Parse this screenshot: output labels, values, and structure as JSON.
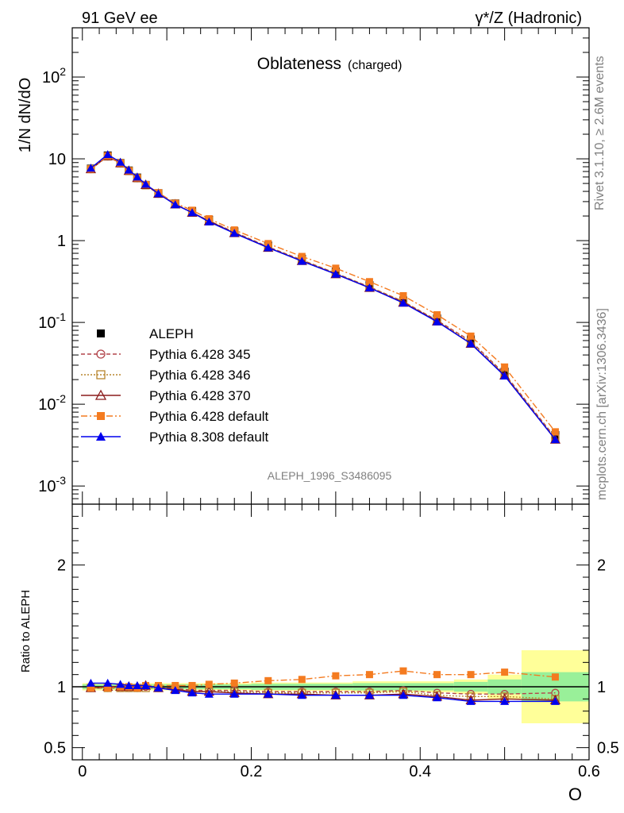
{
  "header": {
    "left": "91 GeV ee",
    "right": "γ*/Z (Hadronic)"
  },
  "side": {
    "rivet": "Rivet 3.1.10, ≥ 2.6M events",
    "mcplots": "mcplots.cern.ch [arXiv:1306.3436]"
  },
  "chart_data": [
    {
      "panel": "main",
      "type": "line",
      "title": "Oblateness",
      "subtitle": "(charged)",
      "ylabel": "1/N dN/dO",
      "yscale": "log",
      "ylim": [
        0.0006,
        400
      ],
      "xlim": [
        -0.012,
        0.6
      ],
      "y_tick_labels": [
        "10^-3",
        "10^-2",
        "10^-1",
        "1",
        "10",
        "10^2"
      ],
      "analysis_label": "ALEPH_1996_S3486095",
      "legend_position": "lower-left",
      "x": [
        0.01,
        0.03,
        0.045,
        0.055,
        0.065,
        0.075,
        0.09,
        0.11,
        0.13,
        0.15,
        0.18,
        0.22,
        0.26,
        0.3,
        0.34,
        0.38,
        0.42,
        0.46,
        0.5,
        0.56
      ],
      "series": [
        {
          "name": "ALEPH",
          "color": "#000000",
          "marker": "square-filled",
          "line": "none",
          "values": [
            7.6,
            11.0,
            8.9,
            7.2,
            5.9,
            4.8,
            3.8,
            2.85,
            2.3,
            1.8,
            1.3,
            0.87,
            0.6,
            0.42,
            0.285,
            0.185,
            0.112,
            0.062,
            0.025,
            0.0042
          ]
        },
        {
          "name": "Pythia 6.428 345",
          "color": "#b2444a",
          "marker": "circle-open",
          "line": "dashed",
          "values": [
            7.5,
            10.7,
            8.8,
            7.1,
            5.8,
            4.75,
            3.75,
            2.8,
            2.2,
            1.75,
            1.27,
            0.84,
            0.58,
            0.4,
            0.272,
            0.18,
            0.106,
            0.059,
            0.0235,
            0.0039
          ]
        },
        {
          "name": "Pythia 6.428 346",
          "color": "#b8862e",
          "marker": "square-open",
          "line": "dotted",
          "values": [
            7.5,
            10.7,
            8.8,
            7.1,
            5.8,
            4.75,
            3.75,
            2.8,
            2.2,
            1.75,
            1.26,
            0.83,
            0.575,
            0.4,
            0.27,
            0.18,
            0.104,
            0.057,
            0.023,
            0.0038
          ]
        },
        {
          "name": "Pythia 6.428 370",
          "color": "#8b1c1c",
          "marker": "triangle-open",
          "line": "solid",
          "values": [
            7.5,
            10.8,
            8.85,
            7.15,
            5.85,
            4.8,
            3.75,
            2.78,
            2.2,
            1.73,
            1.24,
            0.82,
            0.565,
            0.39,
            0.265,
            0.175,
            0.103,
            0.055,
            0.0225,
            0.0037
          ]
        },
        {
          "name": "Pythia 6.428 default",
          "color": "#f47b20",
          "marker": "square-filled",
          "line": "dashdot",
          "values": [
            7.5,
            10.9,
            8.9,
            7.15,
            5.85,
            4.85,
            3.85,
            2.87,
            2.35,
            1.85,
            1.35,
            0.92,
            0.64,
            0.46,
            0.315,
            0.212,
            0.124,
            0.068,
            0.0285,
            0.0046
          ]
        },
        {
          "name": "Pythia 8.308 default",
          "color": "#0000ee",
          "marker": "triangle-filled",
          "line": "solid",
          "values": [
            7.7,
            11.3,
            9.1,
            7.3,
            6.0,
            4.9,
            3.75,
            2.75,
            2.2,
            1.7,
            1.23,
            0.82,
            0.56,
            0.39,
            0.265,
            0.173,
            0.102,
            0.055,
            0.0222,
            0.0037
          ]
        }
      ]
    },
    {
      "panel": "ratio",
      "type": "line",
      "ylabel": "Ratio to ALEPH",
      "xlabel": "O",
      "ylim": [
        0.4,
        2.5
      ],
      "yticks": [
        0.5,
        1,
        2
      ],
      "xlim": [
        -0.012,
        0.6
      ],
      "xticks": [
        0,
        0.2,
        0.4,
        0.6
      ],
      "uncertainty_bands": [
        {
          "x0": 0.0,
          "x1": 0.04,
          "inner": 0.02,
          "outer": 0.03
        },
        {
          "x0": 0.04,
          "x1": 0.08,
          "inner": 0.015,
          "outer": 0.025
        },
        {
          "x0": 0.08,
          "x1": 0.2,
          "inner": 0.02,
          "outer": 0.03
        },
        {
          "x0": 0.2,
          "x1": 0.32,
          "inner": 0.025,
          "outer": 0.035
        },
        {
          "x0": 0.32,
          "x1": 0.44,
          "inner": 0.03,
          "outer": 0.045
        },
        {
          "x0": 0.44,
          "x1": 0.48,
          "inner": 0.04,
          "outer": 0.06
        },
        {
          "x0": 0.48,
          "x1": 0.52,
          "inner": 0.06,
          "outer": 0.1
        },
        {
          "x0": 0.52,
          "x1": 0.6,
          "inner": 0.12,
          "outer": 0.3
        }
      ],
      "x": [
        0.01,
        0.03,
        0.045,
        0.055,
        0.065,
        0.075,
        0.09,
        0.11,
        0.13,
        0.15,
        0.18,
        0.22,
        0.26,
        0.3,
        0.34,
        0.38,
        0.42,
        0.46,
        0.5,
        0.56
      ],
      "series": [
        {
          "name": "Pythia 6.428 345",
          "values": [
            0.99,
            0.99,
            0.99,
            0.99,
            0.99,
            1.0,
            0.99,
            0.99,
            0.97,
            0.97,
            0.97,
            0.96,
            0.96,
            0.96,
            0.96,
            0.97,
            0.95,
            0.94,
            0.94,
            0.95
          ]
        },
        {
          "name": "Pythia 6.428 346",
          "values": [
            0.99,
            0.99,
            0.99,
            0.99,
            0.99,
            0.99,
            0.99,
            0.98,
            0.96,
            0.96,
            0.96,
            0.95,
            0.95,
            0.95,
            0.95,
            0.96,
            0.93,
            0.92,
            0.92,
            0.9
          ]
        },
        {
          "name": "Pythia 6.428 370",
          "values": [
            0.99,
            1.0,
            1.0,
            1.0,
            1.0,
            1.01,
            0.99,
            0.98,
            0.96,
            0.96,
            0.95,
            0.94,
            0.94,
            0.93,
            0.93,
            0.94,
            0.92,
            0.89,
            0.9,
            0.89
          ]
        },
        {
          "name": "Pythia 6.428 default",
          "values": [
            0.99,
            0.99,
            1.0,
            1.0,
            0.99,
            1.01,
            1.01,
            1.01,
            1.01,
            1.02,
            1.03,
            1.05,
            1.06,
            1.09,
            1.1,
            1.13,
            1.1,
            1.1,
            1.12,
            1.08
          ]
        },
        {
          "name": "Pythia 8.308 default",
          "values": [
            1.03,
            1.03,
            1.02,
            1.01,
            1.01,
            1.01,
            0.99,
            0.97,
            0.95,
            0.94,
            0.94,
            0.94,
            0.93,
            0.93,
            0.93,
            0.93,
            0.91,
            0.88,
            0.88,
            0.88
          ]
        }
      ]
    }
  ]
}
